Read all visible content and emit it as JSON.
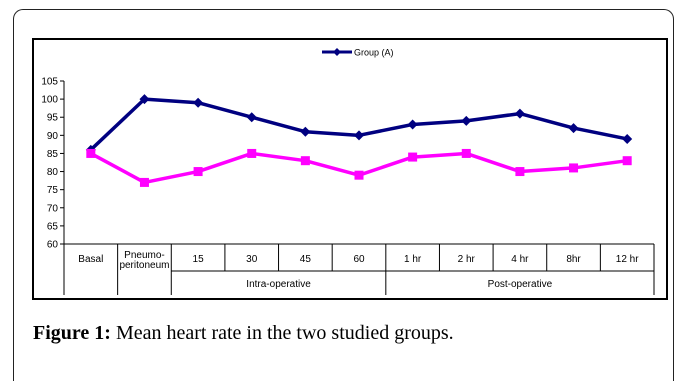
{
  "chart_data": {
    "type": "line",
    "title": "",
    "xlabel": "",
    "ylabel": "",
    "ylim": [
      60,
      105
    ],
    "yticks": [
      60,
      65,
      70,
      75,
      80,
      85,
      90,
      95,
      100,
      105
    ],
    "categories": [
      "Basal",
      "Pneumo-\nperitoneum",
      "15",
      "30",
      "45",
      "60",
      "1 hr",
      "2 hr",
      "4 hr",
      "8hr",
      "12 hr"
    ],
    "groups": [
      {
        "label": "Intra-operative",
        "from": 2,
        "to": 5
      },
      {
        "label": "Post-operative",
        "from": 6,
        "to": 10
      }
    ],
    "legend_position": "top",
    "grid": false,
    "series": [
      {
        "name": "Group (A)",
        "color": "#000080",
        "marker": "diamond",
        "values": [
          86,
          100,
          99,
          95,
          91,
          90,
          93,
          94,
          96,
          92,
          89
        ]
      },
      {
        "name": "",
        "color": "#ff00ff",
        "marker": "square",
        "values": [
          85,
          77,
          80,
          85,
          83,
          79,
          84,
          85,
          80,
          81,
          83
        ]
      }
    ]
  },
  "caption": {
    "label": "Figure 1:",
    "text": " Mean heart rate in the two studied groups."
  }
}
